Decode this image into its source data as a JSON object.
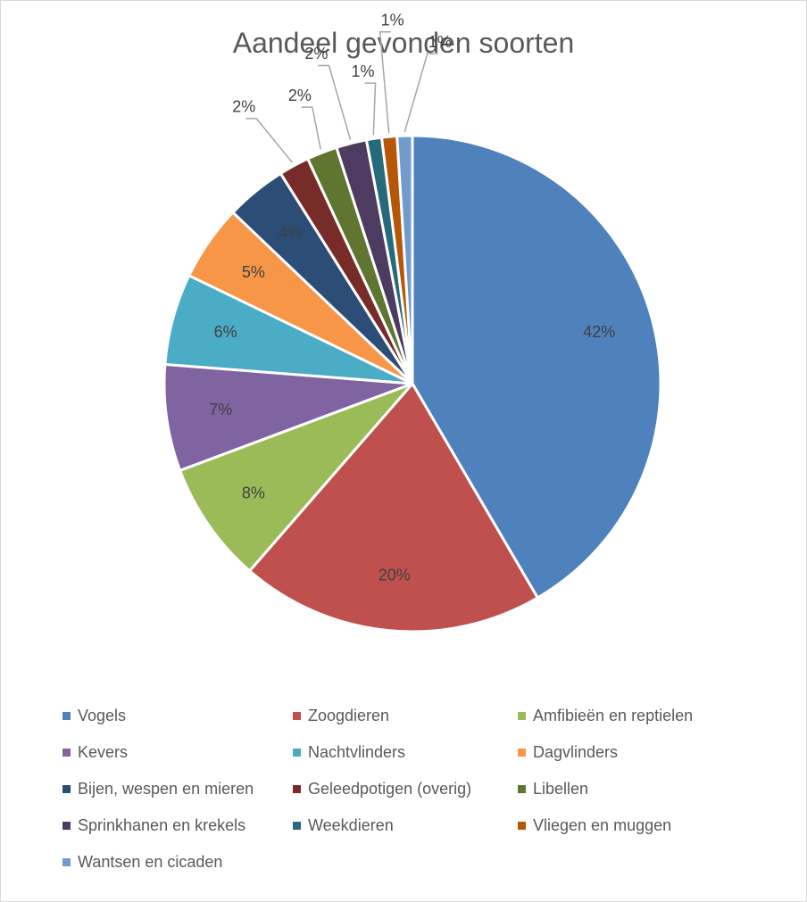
{
  "chart_data": {
    "type": "pie",
    "title": "Aandeel gevonden soorten",
    "categories": [
      "Vogels",
      "Zoogdieren",
      "Amfibieën en reptielen",
      "Kevers",
      "Nachtvlinders",
      "Dagvlinders",
      "Bijen, wespen en mieren",
      "Geleedpotigen (overig)",
      "Libellen",
      "Sprinkhanen en krekels",
      "Weekdieren",
      "Vliegen en muggen",
      "Wantsen en cicaden"
    ],
    "values": [
      42,
      20,
      8,
      7,
      6,
      5,
      4,
      2,
      2,
      2,
      1,
      1,
      1
    ],
    "data_labels": [
      "42%",
      "20%",
      "8%",
      "7%",
      "6%",
      "5%",
      "4%",
      "2%",
      "2%",
      "2%",
      "1%",
      "1%",
      "1%"
    ],
    "colors": [
      "#4F81BD",
      "#C0504D",
      "#9BBB59",
      "#8064A2",
      "#4BACC6",
      "#F79646",
      "#2C4D75",
      "#772C2A",
      "#5F7530",
      "#4D3B62",
      "#276A7C",
      "#B65708",
      "#729ACA"
    ],
    "legend_position": "bottom"
  }
}
